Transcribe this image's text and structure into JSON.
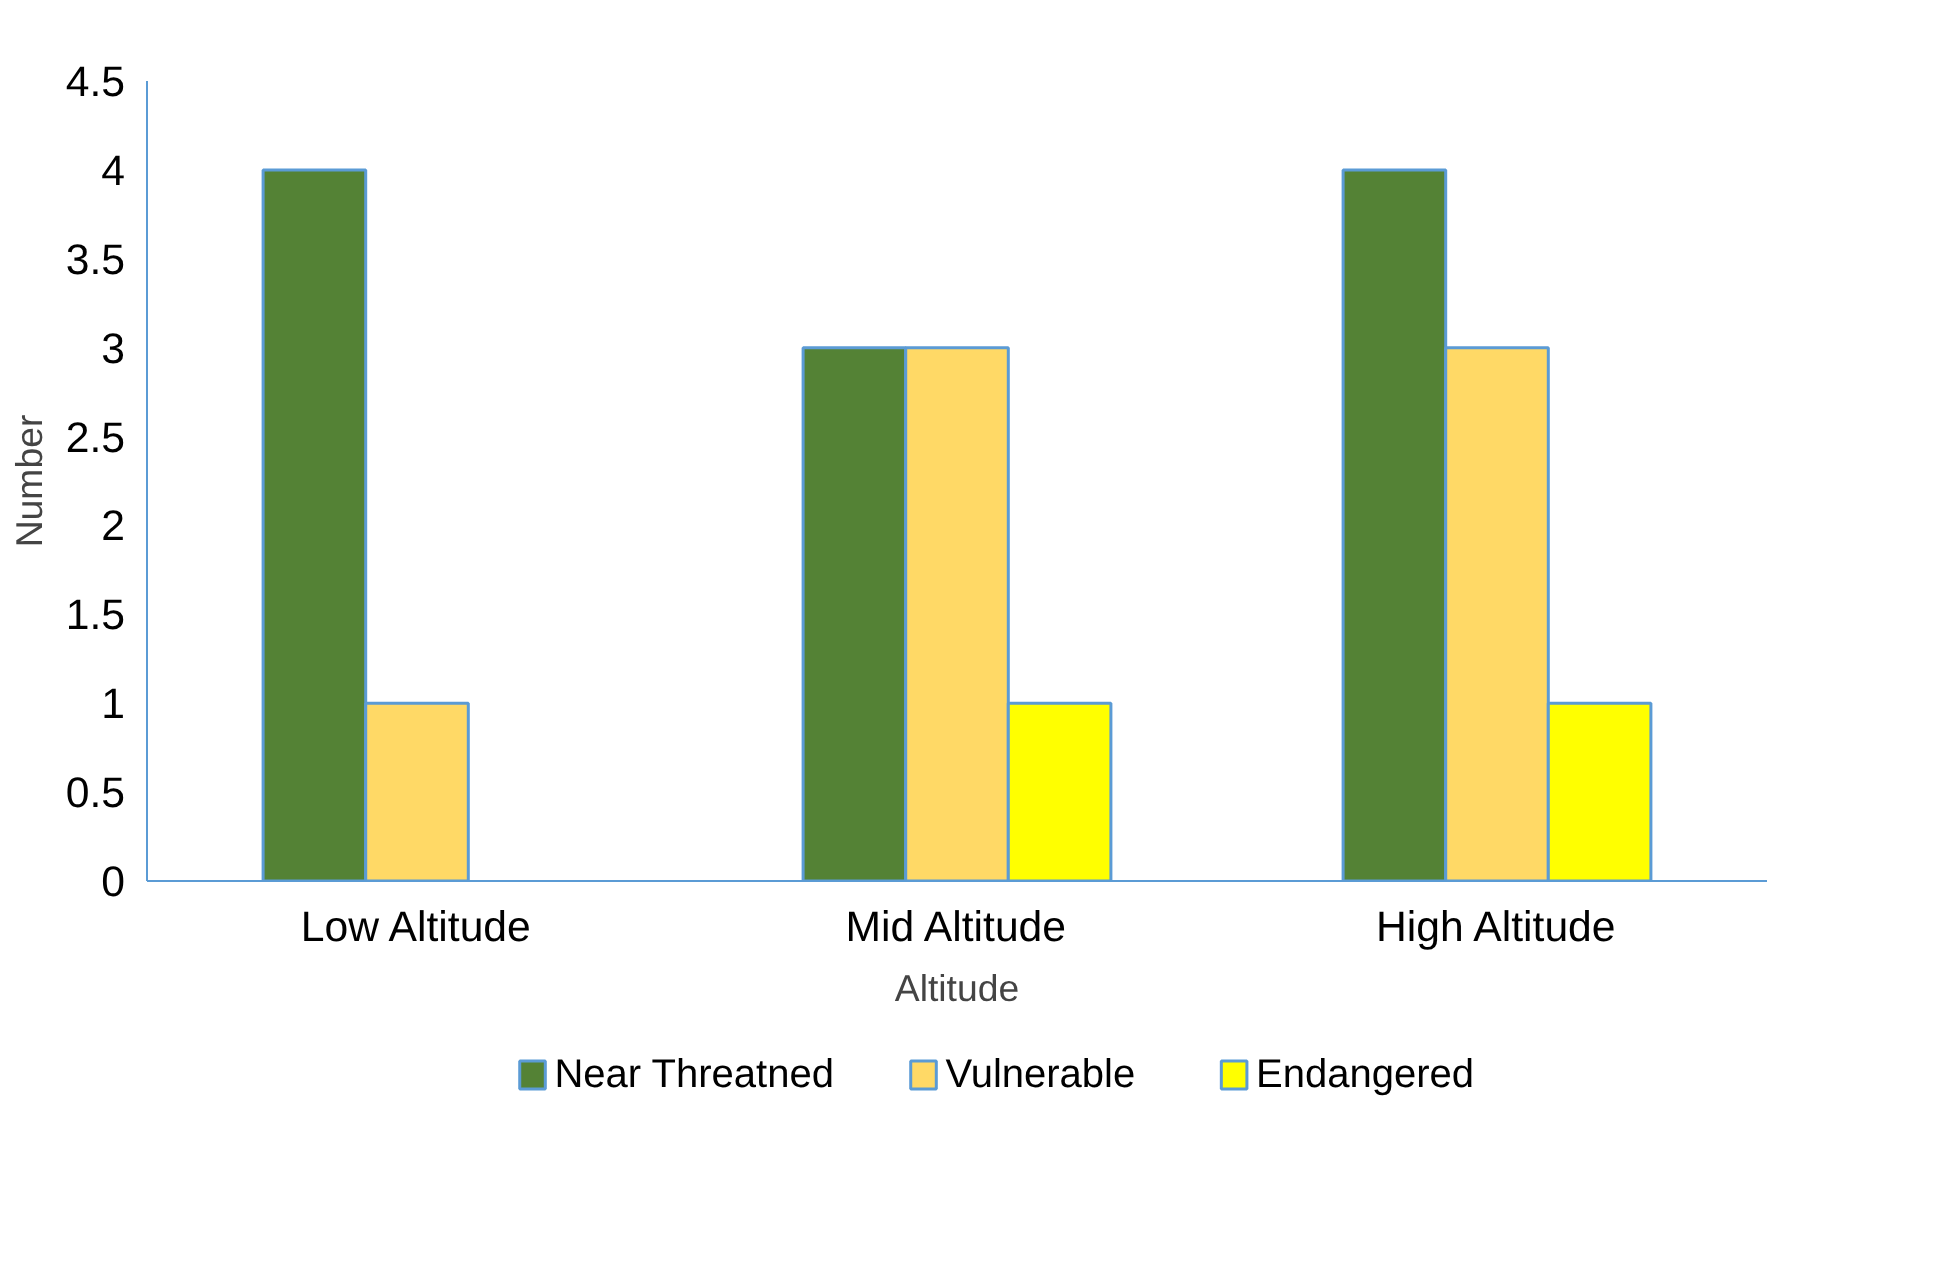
{
  "chart_data": {
    "type": "bar",
    "xlabel": "Altitude",
    "ylabel": "Number",
    "categories": [
      "Low Altitude",
      "Mid Altitude",
      "High Altitude"
    ],
    "series": [
      {
        "name": "Near Threatned",
        "color": "#548235",
        "values": [
          4,
          3,
          4
        ]
      },
      {
        "name": "Vulnerable",
        "color": "#ffd966",
        "values": [
          1,
          3,
          3
        ]
      },
      {
        "name": "Endangered",
        "color": "#ffff00",
        "values": [
          null,
          1,
          1
        ]
      }
    ],
    "ylim": [
      0,
      4.5
    ],
    "yticks": [
      0,
      0.5,
      1,
      1.5,
      2,
      2.5,
      3,
      3.5,
      4,
      4.5
    ],
    "grid": false,
    "legend": "bottom"
  }
}
